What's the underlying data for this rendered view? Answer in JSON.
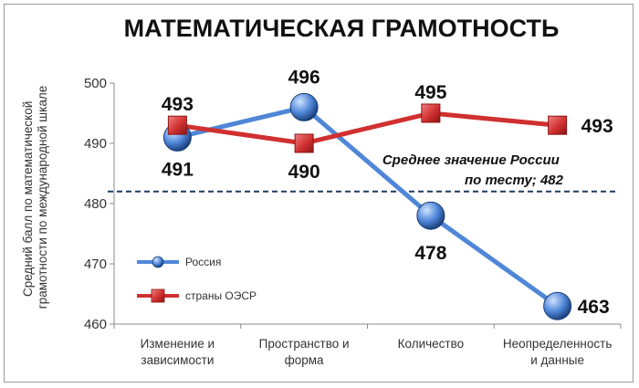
{
  "chart_data": {
    "type": "line",
    "title": "МАТЕМАТИЧЕСКАЯ ГРАМОТНОСТЬ",
    "ylabel_lines": [
      "Средний балл по математической",
      "грамотности по международной шкале"
    ],
    "xlabel": "",
    "categories": [
      [
        "Изменение и",
        "зависимости"
      ],
      [
        "Пространство и",
        "форма"
      ],
      [
        "Количество"
      ],
      [
        "Неопределенность",
        "и данные"
      ]
    ],
    "ylim": [
      460,
      500
    ],
    "yticks": [
      "460",
      "470",
      "480",
      "490",
      "500"
    ],
    "grid": false,
    "legend": "bottom-left",
    "series": [
      {
        "name": "Россия",
        "values": [
          491,
          496,
          478,
          463
        ],
        "color": "#4f86d8",
        "marker": "circle"
      },
      {
        "name": "страны ОЭСР",
        "values": [
          493,
          490,
          495,
          493
        ],
        "color": "#d03030",
        "marker": "square"
      }
    ],
    "reference_line": {
      "value": 482,
      "style": "dashed",
      "color": "#1f3b63"
    },
    "annotation_lines": [
      "Среднее значение России",
      "по тесту; 482"
    ]
  }
}
